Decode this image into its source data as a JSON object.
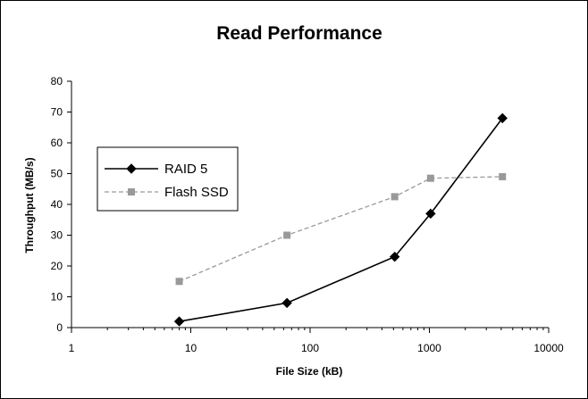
{
  "chart_data": {
    "type": "line",
    "title": "Read Performance",
    "xlabel": "File Size (kB)",
    "ylabel": "Throughput (MB/s)",
    "x_scale": "log",
    "xlim": [
      1,
      10000
    ],
    "ylim": [
      0,
      80
    ],
    "x_ticks": [
      1,
      10,
      100,
      1000,
      10000
    ],
    "x_tick_labels": [
      "1",
      "10",
      "100",
      "1000",
      "10000"
    ],
    "y_ticks": [
      0,
      10,
      20,
      30,
      40,
      50,
      60,
      70,
      80
    ],
    "y_tick_labels": [
      "0",
      "10",
      "20",
      "30",
      "40",
      "50",
      "60",
      "70",
      "80"
    ],
    "grid": false,
    "legend_position": "left",
    "series": [
      {
        "name": "RAID 5",
        "x": [
          8,
          64,
          512,
          1024,
          4096
        ],
        "y": [
          2,
          8,
          23,
          37,
          68
        ],
        "color": "#000000",
        "line_style": "solid",
        "marker": "diamond"
      },
      {
        "name": "Flash SSD",
        "x": [
          8,
          64,
          512,
          1024,
          4096
        ],
        "y": [
          15,
          30,
          42.5,
          48.5,
          49
        ],
        "color": "#999999",
        "line_style": "dashed",
        "marker": "square"
      }
    ]
  }
}
